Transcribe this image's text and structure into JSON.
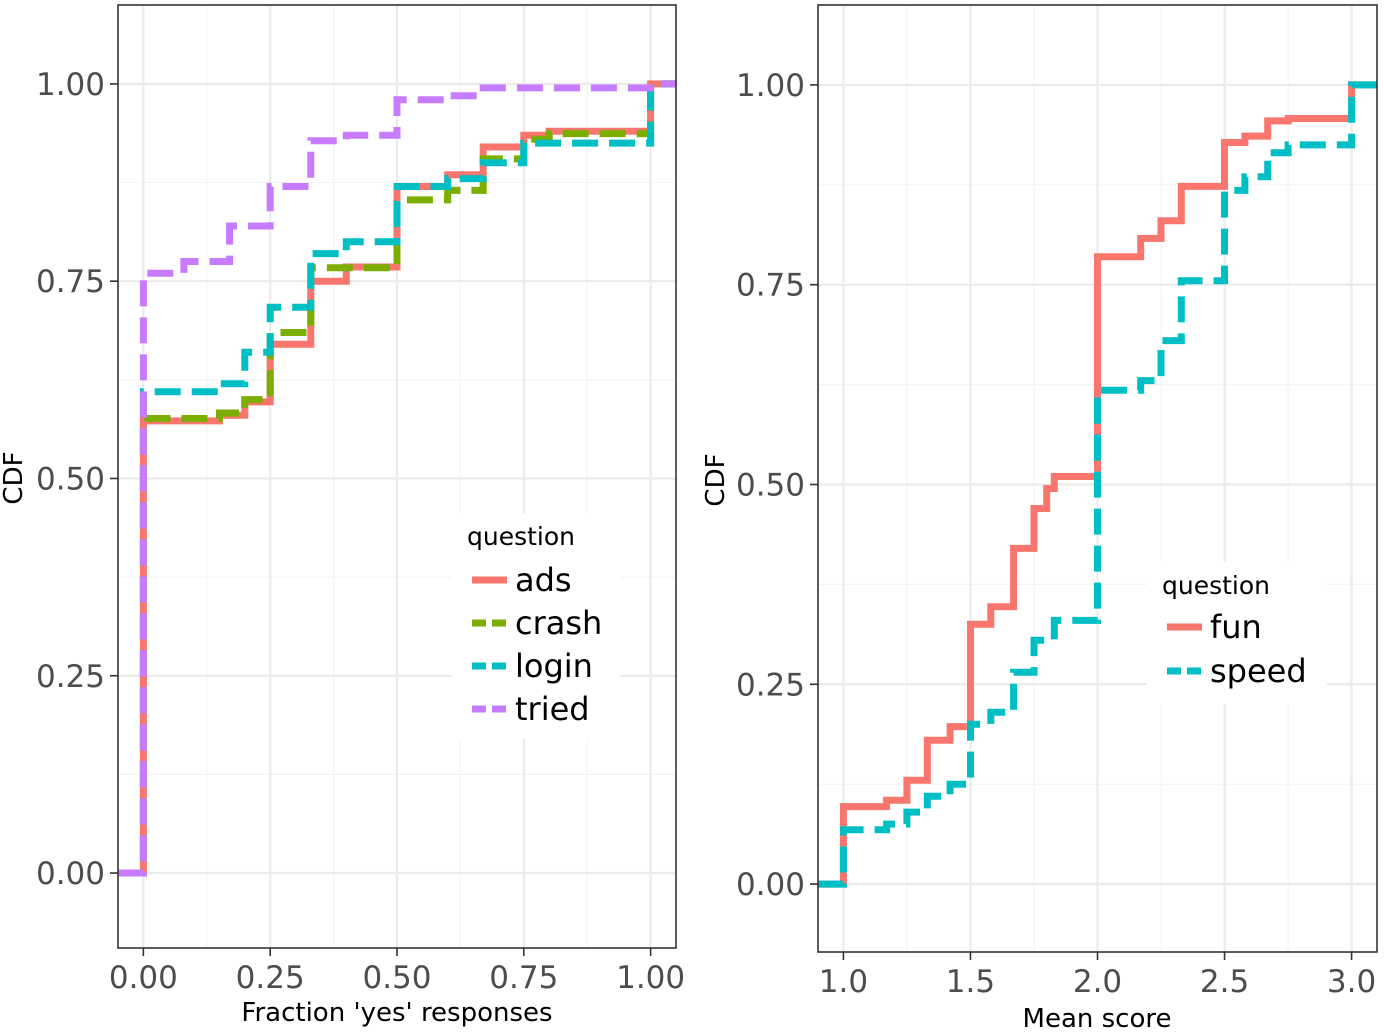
{
  "chart_data": [
    {
      "type": "line",
      "subtype": "step-cdf",
      "xlabel": "Fraction 'yes' responses",
      "ylabel": "CDF",
      "xlim": [
        -0.05,
        1.05
      ],
      "ylim": [
        -0.095,
        1.1
      ],
      "xticks": [
        0.0,
        0.25,
        0.5,
        0.75,
        1.0
      ],
      "xtick_labels": [
        "0.00",
        "0.25",
        "0.50",
        "0.75",
        "1.00"
      ],
      "yticks": [
        0.0,
        0.25,
        0.5,
        0.75,
        1.0
      ],
      "ytick_labels": [
        "0.00",
        "0.25",
        "0.50",
        "0.75",
        "1.00"
      ],
      "grid": true,
      "legend": {
        "title": "question",
        "placement": "right-middle"
      },
      "series": [
        {
          "name": "ads",
          "color": "#F8766D",
          "dash": "solid",
          "x": [
            -0.05,
            0.0,
            0.0,
            0.15,
            0.2,
            0.25,
            0.33,
            0.4,
            0.5,
            0.6,
            0.67,
            0.75,
            0.8,
            1.0,
            1.0,
            1.05
          ],
          "y": [
            0.0,
            0.0,
            0.573,
            0.58,
            0.597,
            0.67,
            0.75,
            0.768,
            0.87,
            0.885,
            0.92,
            0.935,
            0.94,
            0.94,
            1.0,
            1.0
          ]
        },
        {
          "name": "crash",
          "color": "#7CAE00",
          "dash": "dashed",
          "x": [
            -0.05,
            0.0,
            0.0,
            0.15,
            0.2,
            0.25,
            0.33,
            0.5,
            0.6,
            0.67,
            0.75,
            0.8,
            1.0,
            1.0,
            1.05
          ],
          "y": [
            0.0,
            0.0,
            0.576,
            0.583,
            0.6,
            0.685,
            0.767,
            0.853,
            0.865,
            0.905,
            0.93,
            0.937,
            0.937,
            1.0,
            1.0
          ]
        },
        {
          "name": "login",
          "color": "#00BFC4",
          "dash": "dashed",
          "x": [
            -0.05,
            0.0,
            0.0,
            0.15,
            0.2,
            0.25,
            0.33,
            0.4,
            0.5,
            0.6,
            0.67,
            0.75,
            1.0,
            1.0,
            1.05
          ],
          "y": [
            0.0,
            0.0,
            0.61,
            0.62,
            0.66,
            0.717,
            0.785,
            0.8,
            0.87,
            0.88,
            0.9,
            0.925,
            0.93,
            1.0,
            1.0
          ]
        },
        {
          "name": "tried",
          "color": "#C77CFF",
          "dash": "dashed",
          "x": [
            -0.05,
            0.0,
            0.0,
            0.08,
            0.17,
            0.25,
            0.33,
            0.4,
            0.5,
            0.6,
            0.67,
            1.0,
            1.05
          ],
          "y": [
            0.0,
            0.0,
            0.76,
            0.775,
            0.82,
            0.87,
            0.928,
            0.935,
            0.98,
            0.985,
            0.995,
            1.0,
            1.0
          ]
        }
      ]
    },
    {
      "type": "line",
      "subtype": "step-cdf",
      "xlabel": "Mean score",
      "ylabel": "CDF",
      "xlim": [
        0.9,
        3.1
      ],
      "ylim": [
        -0.085,
        1.1
      ],
      "xticks": [
        1.0,
        1.5,
        2.0,
        2.5,
        3.0
      ],
      "xtick_labels": [
        "1.0",
        "1.5",
        "2.0",
        "2.5",
        "3.0"
      ],
      "yticks": [
        0.0,
        0.25,
        0.5,
        0.75,
        1.0
      ],
      "ytick_labels": [
        "0.00",
        "0.25",
        "0.50",
        "0.75",
        "1.00"
      ],
      "grid": true,
      "legend": {
        "title": "question",
        "placement": "right-middle"
      },
      "series": [
        {
          "name": "fun",
          "color": "#F8766D",
          "dash": "solid",
          "x": [
            0.9,
            1.0,
            1.0,
            1.17,
            1.25,
            1.33,
            1.42,
            1.5,
            1.58,
            1.67,
            1.75,
            1.8,
            1.83,
            2.0,
            2.17,
            2.25,
            2.33,
            2.5,
            2.58,
            2.67,
            2.75,
            3.0,
            3.0,
            3.1
          ],
          "y": [
            0.0,
            0.0,
            0.097,
            0.105,
            0.13,
            0.18,
            0.197,
            0.325,
            0.347,
            0.42,
            0.47,
            0.495,
            0.51,
            0.785,
            0.808,
            0.83,
            0.873,
            0.928,
            0.936,
            0.955,
            0.958,
            0.96,
            1.0,
            1.0
          ]
        },
        {
          "name": "speed",
          "color": "#00BFC4",
          "dash": "dashed",
          "x": [
            0.9,
            1.0,
            1.0,
            1.17,
            1.25,
            1.33,
            1.42,
            1.5,
            1.58,
            1.67,
            1.75,
            1.83,
            2.0,
            2.17,
            2.25,
            2.33,
            2.5,
            2.58,
            2.67,
            2.75,
            3.0,
            3.0,
            3.1
          ],
          "y": [
            0.0,
            0.0,
            0.068,
            0.075,
            0.09,
            0.11,
            0.125,
            0.2,
            0.215,
            0.265,
            0.305,
            0.33,
            0.618,
            0.63,
            0.68,
            0.755,
            0.868,
            0.885,
            0.915,
            0.925,
            0.93,
            1.0,
            1.0
          ]
        }
      ]
    }
  ]
}
